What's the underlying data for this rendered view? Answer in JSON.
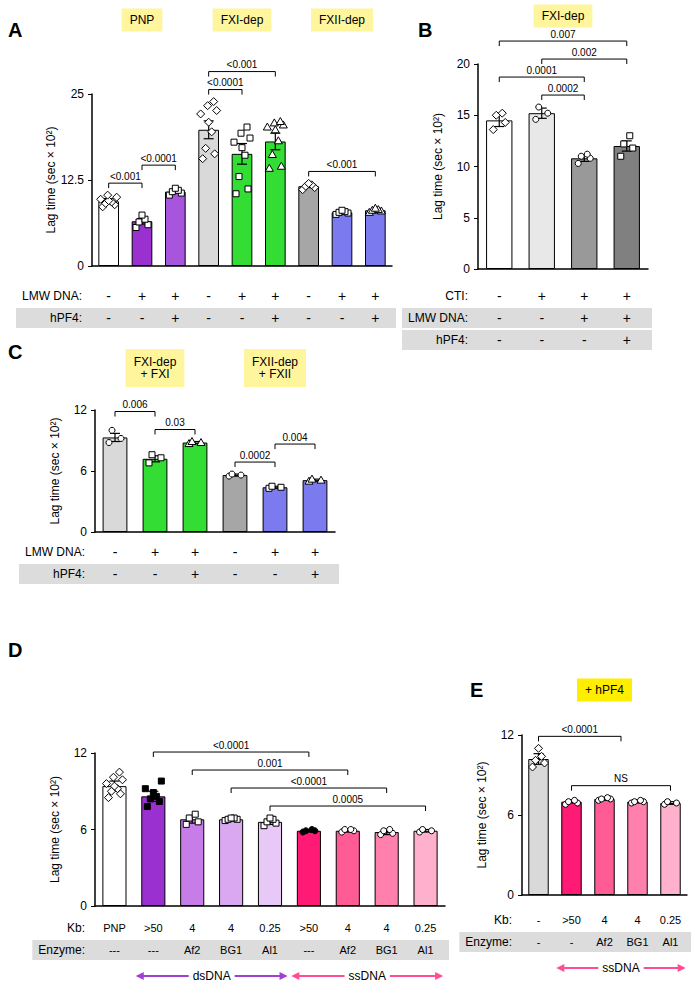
{
  "chart_data": [
    {
      "type": "bar",
      "panel": "A",
      "y_label": "Lag time (sec × 10²)",
      "ylim": [
        0,
        25
      ],
      "yticks": [
        0,
        12.5,
        25
      ],
      "grid": false,
      "headers": [
        {
          "label": "PNP",
          "start": 0,
          "end": 2,
          "color": "#fff59d"
        },
        {
          "label": "FXI-dep",
          "start": 3,
          "end": 5,
          "color": "#fff59d"
        },
        {
          "label": "FXII-dep",
          "start": 6,
          "end": 8,
          "color": "#fff59d"
        }
      ],
      "values": [
        9.4,
        6.5,
        10.8,
        19.8,
        16.3,
        18.1,
        11.6,
        7.8,
        8.1
      ],
      "errors": [
        0.4,
        0.4,
        0.2,
        1.3,
        1.5,
        1.2,
        0.2,
        0.1,
        0.1
      ],
      "colors": [
        "#ffffff",
        "#9b30d0",
        "#a855dd",
        "#d9d9d9",
        "#33dd33",
        "#33dd33",
        "#a6a6a6",
        "#7b7bef",
        "#7b7bef"
      ],
      "marker": [
        "diamond",
        "square",
        "square",
        "diamond",
        "square",
        "triangle",
        "diamond",
        "square",
        "triangle"
      ],
      "points": [
        [
          8.6,
          8.9,
          9.1,
          9.3,
          9.5,
          9.7,
          10.0,
          10.3
        ],
        [
          5.6,
          6.0,
          6.4,
          6.8,
          7.4
        ],
        [
          10.3,
          10.6,
          10.8,
          11.0,
          11.3
        ],
        [
          15.6,
          16.3,
          17.1,
          19.5,
          20.9,
          22.1,
          22.6,
          23.3,
          23.9
        ],
        [
          10.5,
          11.2,
          13.0,
          16.1,
          17.2,
          18.0,
          18.6,
          19.3,
          20.2
        ],
        [
          14.2,
          14.5,
          16.2,
          18.2,
          19.8,
          20.2,
          20.5,
          20.8,
          21.0
        ],
        [
          11.1,
          11.4,
          11.6,
          11.8,
          12.0
        ],
        [
          7.5,
          7.7,
          7.8,
          7.9,
          8.1
        ],
        [
          7.8,
          8.0,
          8.1,
          8.2,
          8.4
        ]
      ],
      "rows": [
        {
          "label": "LMW DNA:",
          "values": [
            "-",
            "+",
            "+",
            "-",
            "+",
            "+",
            "-",
            "+",
            "+"
          ]
        },
        {
          "label": "hPF4:",
          "values": [
            "-",
            "-",
            "+",
            "-",
            "-",
            "+",
            "-",
            "-",
            "+"
          ]
        }
      ],
      "comparisons": [
        {
          "from": 0,
          "to": 1,
          "label": "<0.001"
        },
        {
          "from": 1,
          "to": 2,
          "label": "<0.0001"
        },
        {
          "from": 3,
          "to": 4,
          "label": "<0.0001"
        },
        {
          "from": 3,
          "to": 5,
          "label": "<0.001"
        },
        {
          "from": 6,
          "to": 8,
          "label": "<0.001"
        }
      ]
    },
    {
      "type": "bar",
      "panel": "B",
      "y_label": "Lag time (sec × 10²)",
      "ylim": [
        0,
        20
      ],
      "yticks": [
        0,
        5,
        10,
        15,
        20
      ],
      "grid": false,
      "headers": [
        {
          "label": "FXI-dep",
          "start": 0,
          "end": 3,
          "color": "#fff59d"
        }
      ],
      "values": [
        14.5,
        15.2,
        10.8,
        12.0
      ],
      "errors": [
        0.6,
        0.5,
        0.3,
        0.5
      ],
      "colors": [
        "#ffffff",
        "#e8e8e8",
        "#999999",
        "#808080"
      ],
      "marker": [
        "diamond",
        "circle",
        "circle",
        "square"
      ],
      "points": [
        [
          13.6,
          14.3,
          15.0,
          15.2
        ],
        [
          14.6,
          15.2,
          15.8
        ],
        [
          10.3,
          10.8,
          11.0,
          11.2
        ],
        [
          11.0,
          11.8,
          12.2,
          13.0
        ]
      ],
      "rows": [
        {
          "label": "CTI:",
          "values": [
            "-",
            "+",
            "+",
            "+"
          ]
        },
        {
          "label": "LMW DNA:",
          "values": [
            "-",
            "-",
            "+",
            "+"
          ]
        },
        {
          "label": "hPF4:",
          "values": [
            "-",
            "-",
            "-",
            "+"
          ]
        }
      ],
      "comparisons": [
        {
          "from": 1,
          "to": 2,
          "label": "0.0002"
        },
        {
          "from": 0,
          "to": 2,
          "label": "0.0001"
        },
        {
          "from": 1,
          "to": 3,
          "label": "0.002"
        },
        {
          "from": 0,
          "to": 3,
          "label": "0.007"
        }
      ]
    },
    {
      "type": "bar",
      "panel": "C",
      "y_label": "Lag time (sec × 10²)",
      "ylim": [
        0,
        12
      ],
      "yticks": [
        0,
        6,
        12
      ],
      "grid": false,
      "headers": [
        {
          "label": "FXI-dep\n+ FXI",
          "start": 0,
          "end": 2,
          "color": "#fff59d"
        },
        {
          "label": "FXII-dep\n+ FXII",
          "start": 3,
          "end": 5,
          "color": "#fff59d"
        }
      ],
      "values": [
        9.3,
        7.2,
        8.8,
        5.6,
        4.4,
        5.1
      ],
      "errors": [
        0.4,
        0.3,
        0.1,
        0.1,
        0.1,
        0.1
      ],
      "colors": [
        "#d9d9d9",
        "#33dd33",
        "#33dd33",
        "#a6a6a6",
        "#7b7bef",
        "#7b7bef"
      ],
      "marker": [
        "circle",
        "square",
        "triangle",
        "circle",
        "square",
        "triangle"
      ],
      "points": [
        [
          8.8,
          9.2,
          10.0
        ],
        [
          6.8,
          7.3,
          7.6
        ],
        [
          8.7,
          8.8,
          8.9
        ],
        [
          5.5,
          5.6,
          5.7
        ],
        [
          4.3,
          4.4,
          4.5
        ],
        [
          5.0,
          5.1,
          5.2
        ]
      ],
      "rows": [
        {
          "label": "LMW DNA:",
          "values": [
            "-",
            "+",
            "+",
            "-",
            "+",
            "+"
          ]
        },
        {
          "label": "hPF4:",
          "values": [
            "-",
            "-",
            "+",
            "-",
            "-",
            "+"
          ]
        }
      ],
      "comparisons": [
        {
          "from": 1,
          "to": 2,
          "label": "0.03"
        },
        {
          "from": 0,
          "to": 1,
          "label": "0.006"
        },
        {
          "from": 3,
          "to": 4,
          "label": "0.0002"
        },
        {
          "from": 4,
          "to": 5,
          "label": "0.004"
        }
      ]
    },
    {
      "type": "bar",
      "panel": "D",
      "y_label": "Lag time (sec × 10²)",
      "ylim": [
        0,
        12
      ],
      "yticks": [
        0,
        6,
        12
      ],
      "grid": false,
      "headers": [],
      "values": [
        9.4,
        8.6,
        6.8,
        6.8,
        6.6,
        5.9,
        5.9,
        5.8,
        5.9
      ],
      "errors": [
        0.4,
        0.4,
        0.3,
        0.1,
        0.2,
        0.1,
        0.1,
        0.2,
        0.1
      ],
      "colors": [
        "#ffffff",
        "#9b30d0",
        "#c77de8",
        "#d9a8f0",
        "#e8c8f6",
        "#ff1a75",
        "#ff5c95",
        "#ff80ad",
        "#ffb0cc"
      ],
      "marker": [
        "diamond",
        "filled-square",
        "square",
        "square",
        "square",
        "filled-circle",
        "circle",
        "circle",
        "circle"
      ],
      "points": [
        [
          8.5,
          8.8,
          9.0,
          9.2,
          9.4,
          9.6,
          9.9,
          10.1,
          10.5
        ],
        [
          7.8,
          8.2,
          8.4,
          8.6,
          8.9,
          9.2,
          9.8
        ],
        [
          6.4,
          6.6,
          6.9,
          7.2
        ],
        [
          6.7,
          6.8,
          6.8,
          6.9,
          6.9
        ],
        [
          6.3,
          6.5,
          6.6,
          6.8,
          6.9
        ],
        [
          5.8,
          5.9,
          5.9,
          6.0
        ],
        [
          5.8,
          5.9,
          6.0,
          6.0
        ],
        [
          5.6,
          5.7,
          5.9,
          6.0
        ],
        [
          5.8,
          5.9,
          6.0
        ]
      ],
      "rows": [
        {
          "label": "Kb:",
          "values": [
            "PNP",
            ">50",
            "4",
            "4",
            "0.25",
            ">50",
            "4",
            "4",
            "0.25"
          ]
        },
        {
          "label": "Enzyme:",
          "values": [
            "---",
            "---",
            "Af2",
            "BG1",
            "Al1",
            "---",
            "Af2",
            "BG1",
            "Al1"
          ]
        }
      ],
      "bottom_groups": [
        {
          "label": "dsDNA",
          "start": 1,
          "end": 4,
          "color": "#a040d0"
        },
        {
          "label": "ssDNA",
          "start": 5,
          "end": 8,
          "color": "#ff4d94"
        }
      ],
      "comparisons": [
        {
          "from": 4,
          "to": 8,
          "label": "0.0005"
        },
        {
          "from": 3,
          "to": 7,
          "label": "<0.0001"
        },
        {
          "from": 2,
          "to": 6,
          "label": "0.001"
        },
        {
          "from": 1,
          "to": 5,
          "label": "<0.0001"
        }
      ]
    },
    {
      "type": "bar",
      "panel": "E",
      "y_label": "Lag time (sec × 10²)",
      "ylim": [
        0,
        12
      ],
      "yticks": [
        0,
        6,
        12
      ],
      "grid": false,
      "headers": [
        {
          "label": "+ hPF4",
          "start": 0,
          "end": 4,
          "color": "#ffee00"
        }
      ],
      "values": [
        10.2,
        7.0,
        7.2,
        7.0,
        6.9
      ],
      "errors": [
        0.4,
        0.1,
        0.1,
        0.1,
        0.1
      ],
      "colors": [
        "#d9d9d9",
        "#ff1a75",
        "#ff5c95",
        "#ff80ad",
        "#ffb0cc"
      ],
      "marker": [
        "diamond",
        "circle",
        "circle",
        "circle",
        "circle"
      ],
      "points": [
        [
          9.6,
          9.9,
          10.1,
          10.4,
          11.0
        ],
        [
          6.8,
          6.9,
          7.0,
          7.1
        ],
        [
          7.1,
          7.2,
          7.2,
          7.3
        ],
        [
          6.9,
          7.0,
          7.0,
          7.1
        ],
        [
          6.8,
          6.9,
          7.0
        ]
      ],
      "rows": [
        {
          "label": "Kb:",
          "values": [
            "-",
            ">50",
            "4",
            "4",
            "0.25"
          ]
        },
        {
          "label": "Enzyme:",
          "values": [
            "-",
            "-",
            "Af2",
            "BG1",
            "Al1"
          ]
        }
      ],
      "bottom_groups": [
        {
          "label": "ssDNA",
          "start": 1,
          "end": 4,
          "color": "#ff4d94"
        }
      ],
      "comparisons": [
        {
          "from": 1,
          "to": 4,
          "label": "NS"
        },
        {
          "from": 0,
          "to": [
            1,
            4
          ],
          "label": "<0.0001"
        }
      ]
    }
  ]
}
